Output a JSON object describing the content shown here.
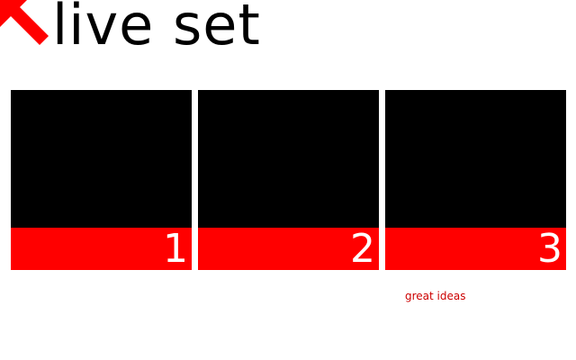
{
  "header": {
    "title": "live set",
    "logo_icon": "arrow-up-left-icon",
    "accent_color": "#ff0000"
  },
  "panels": [
    {
      "number": "1"
    },
    {
      "number": "2"
    },
    {
      "number": "3"
    }
  ],
  "tagline": {
    "text": "great ideas",
    "color": "#cc0000"
  }
}
